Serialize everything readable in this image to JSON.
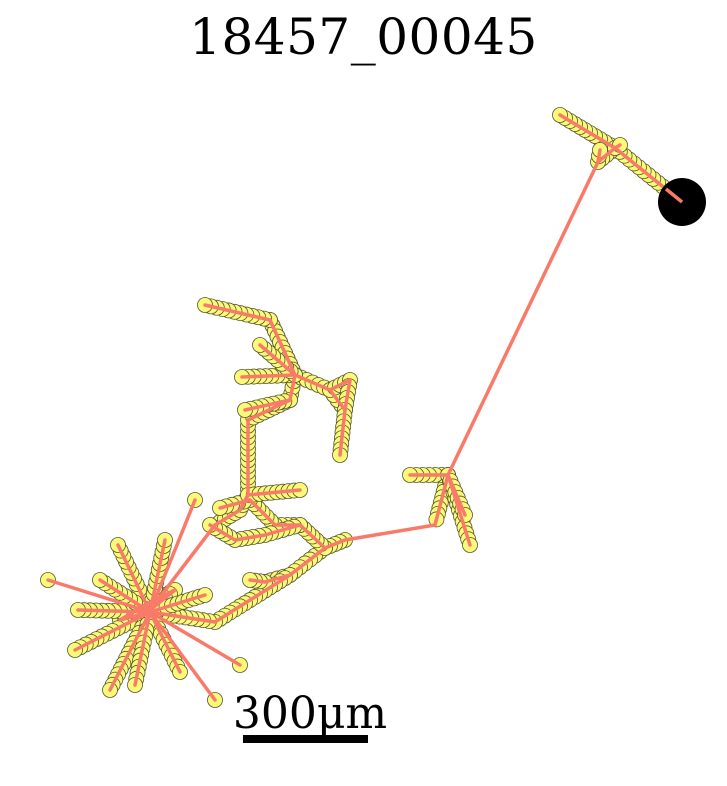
{
  "title": "18457_00045",
  "scale_bar_label": "300μm",
  "colors": {
    "path": "#fa7a6a",
    "node_fill": "#fafa78",
    "node_stroke": "#555533",
    "start_marker": "#000000"
  },
  "trajectory": {
    "path": [
      [
        682,
        202
      ],
      [
        615,
        148
      ],
      [
        598,
        162
      ],
      [
        448,
        475
      ],
      [
        435,
        525
      ],
      [
        345,
        540
      ],
      [
        325,
        548
      ],
      [
        290,
        575
      ],
      [
        265,
        582
      ],
      [
        290,
        575
      ],
      [
        215,
        622
      ],
      [
        150,
        612
      ],
      [
        120,
        620
      ],
      [
        145,
        605
      ],
      [
        175,
        590
      ],
      [
        150,
        610
      ],
      [
        215,
        525
      ],
      [
        240,
        510
      ],
      [
        248,
        495
      ],
      [
        248,
        420
      ],
      [
        290,
        400
      ],
      [
        295,
        375
      ],
      [
        270,
        320
      ],
      [
        295,
        375
      ],
      [
        330,
        390
      ],
      [
        345,
        410
      ],
      [
        330,
        390
      ],
      [
        350,
        380
      ],
      [
        345,
        410
      ],
      [
        340,
        455
      ]
    ],
    "branches": [
      [
        [
          615,
          148
        ],
        [
          560,
          115
        ]
      ],
      [
        [
          615,
          148
        ],
        [
          620,
          145
        ]
      ],
      [
        [
          598,
          162
        ],
        [
          600,
          150
        ]
      ],
      [
        [
          448,
          475
        ],
        [
          410,
          475
        ]
      ],
      [
        [
          448,
          475
        ],
        [
          470,
          545
        ]
      ],
      [
        [
          448,
          475
        ],
        [
          465,
          515
        ]
      ],
      [
        [
          325,
          548
        ],
        [
          300,
          525
        ],
        [
          275,
          525
        ],
        [
          250,
          500
        ],
        [
          220,
          508
        ]
      ],
      [
        [
          300,
          525
        ],
        [
          265,
          535
        ],
        [
          235,
          540
        ],
        [
          210,
          525
        ]
      ],
      [
        [
          248,
          495
        ],
        [
          300,
          490
        ]
      ],
      [
        [
          265,
          582
        ],
        [
          250,
          580
        ]
      ],
      [
        [
          290,
          400
        ],
        [
          245,
          410
        ]
      ],
      [
        [
          295,
          375
        ],
        [
          242,
          377
        ]
      ],
      [
        [
          270,
          320
        ],
        [
          205,
          305
        ]
      ],
      [
        [
          295,
          375
        ],
        [
          260,
          345
        ]
      ],
      [
        [
          150,
          612
        ],
        [
          48,
          580
        ]
      ],
      [
        [
          150,
          612
        ],
        [
          75,
          650
        ]
      ],
      [
        [
          150,
          612
        ],
        [
          110,
          690
        ]
      ],
      [
        [
          150,
          612
        ],
        [
          118,
          545
        ]
      ],
      [
        [
          150,
          612
        ],
        [
          165,
          540
        ]
      ],
      [
        [
          150,
          612
        ],
        [
          195,
          500
        ]
      ],
      [
        [
          150,
          612
        ],
        [
          215,
          700
        ]
      ],
      [
        [
          150,
          612
        ],
        [
          240,
          665
        ]
      ],
      [
        [
          150,
          612
        ],
        [
          180,
          672
        ]
      ],
      [
        [
          150,
          612
        ],
        [
          78,
          610
        ]
      ],
      [
        [
          150,
          612
        ],
        [
          100,
          580
        ]
      ],
      [
        [
          150,
          612
        ],
        [
          135,
          685
        ]
      ],
      [
        [
          150,
          612
        ],
        [
          205,
          595
        ]
      ]
    ],
    "start": [
      682,
      202
    ]
  }
}
